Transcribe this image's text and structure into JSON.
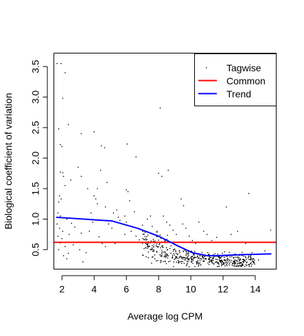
{
  "chart_data": {
    "type": "scatter",
    "title": "",
    "xlabel": "Average log CPM",
    "ylabel": "Biological coefficient of variation",
    "xlim": [
      1.5,
      15.3
    ],
    "ylim": [
      0.18,
      3.72
    ],
    "x_ticks": [
      2,
      4,
      6,
      8,
      10,
      12,
      14
    ],
    "y_ticks": [
      0.5,
      1.0,
      1.5,
      2.0,
      2.5,
      3.0,
      3.5
    ],
    "x_tick_labels": [
      "2",
      "4",
      "6",
      "8",
      "10",
      "12",
      "14"
    ],
    "y_tick_labels": [
      "0.5",
      "1.0",
      "1.5",
      "2.0",
      "2.5",
      "3.0",
      "3.5"
    ],
    "grid": false,
    "legend_position": "top-right",
    "legend": [
      {
        "label": "Tagwise",
        "symbol": "point",
        "color": "#000000"
      },
      {
        "label": "Common",
        "symbol": "line",
        "color": "#ff0000"
      },
      {
        "label": "Trend",
        "symbol": "line",
        "color": "#0000ff"
      }
    ],
    "series": [
      {
        "name": "Tagwise",
        "kind": "points",
        "color": "#000000",
        "points": [
          [
            1.7,
            3.55
          ],
          [
            1.95,
            3.55
          ],
          [
            2.2,
            3.4
          ],
          [
            2.05,
            2.98
          ],
          [
            1.8,
            2.48
          ],
          [
            1.9,
            2.22
          ],
          [
            2.0,
            2.19
          ],
          [
            1.9,
            1.77
          ],
          [
            2.05,
            1.76
          ],
          [
            2.1,
            1.7
          ],
          [
            2.55,
            1.64
          ],
          [
            2.2,
            1.55
          ],
          [
            1.85,
            1.38
          ],
          [
            1.95,
            1.33
          ],
          [
            1.8,
            1.28
          ],
          [
            1.75,
            1.1
          ],
          [
            1.9,
            1.05
          ],
          [
            2.3,
            1.0
          ],
          [
            1.7,
            0.92
          ],
          [
            1.85,
            0.85
          ],
          [
            2.05,
            0.8
          ],
          [
            1.75,
            0.72
          ],
          [
            2.0,
            0.68
          ],
          [
            1.9,
            0.61
          ],
          [
            2.2,
            0.55
          ],
          [
            1.8,
            0.5
          ],
          [
            2.4,
            0.44
          ],
          [
            2.1,
            0.4
          ],
          [
            2.3,
            0.35
          ],
          [
            2.6,
            0.93
          ],
          [
            2.8,
            0.87
          ],
          [
            2.45,
            0.75
          ],
          [
            2.9,
            0.62
          ],
          [
            2.7,
            0.58
          ],
          [
            3.1,
            0.5
          ],
          [
            3.5,
            0.45
          ],
          [
            3.3,
            0.3
          ],
          [
            2.4,
            2.55
          ],
          [
            3.0,
            1.85
          ],
          [
            3.2,
            1.7
          ],
          [
            3.6,
            1.5
          ],
          [
            4.0,
            1.38
          ],
          [
            4.2,
            1.5
          ],
          [
            4.1,
            1.33
          ],
          [
            3.8,
            1.1
          ],
          [
            3.9,
            0.95
          ],
          [
            3.7,
            0.8
          ],
          [
            3.2,
            0.77
          ],
          [
            4.3,
            0.71
          ],
          [
            4.5,
            0.6
          ],
          [
            3.2,
            2.4
          ],
          [
            4.0,
            2.43
          ],
          [
            4.45,
            2.2
          ],
          [
            4.65,
            2.17
          ],
          [
            4.4,
            1.8
          ],
          [
            4.8,
            1.6
          ],
          [
            4.2,
            1.25
          ],
          [
            4.7,
            1.2
          ],
          [
            5.2,
            1.1
          ],
          [
            5.4,
            1.15
          ],
          [
            5.5,
            1.03
          ],
          [
            4.9,
            0.92
          ],
          [
            5.1,
            0.85
          ],
          [
            5.3,
            0.6
          ],
          [
            4.7,
            0.55
          ],
          [
            5.6,
            0.98
          ],
          [
            5.9,
            1.05
          ],
          [
            6.0,
            1.48
          ],
          [
            6.1,
            1.45
          ],
          [
            6.05,
            2.23
          ],
          [
            6.6,
            2.02
          ],
          [
            6.2,
            1.3
          ],
          [
            6.5,
            1.12
          ],
          [
            6.0,
            0.95
          ],
          [
            6.3,
            0.8
          ],
          [
            5.9,
            0.75
          ],
          [
            6.6,
            0.72
          ],
          [
            6.8,
            0.66
          ],
          [
            7.2,
            0.6
          ],
          [
            7.0,
            0.9
          ],
          [
            7.3,
            1.0
          ],
          [
            7.5,
            1.05
          ],
          [
            7.6,
            0.88
          ],
          [
            7.9,
            0.8
          ],
          [
            7.7,
            0.58
          ],
          [
            8.0,
            0.55
          ],
          [
            7.5,
            0.5
          ],
          [
            8.1,
            2.82
          ],
          [
            8.0,
            1.75
          ],
          [
            8.2,
            1.7
          ],
          [
            8.6,
            1.8
          ],
          [
            8.3,
            1.05
          ],
          [
            8.5,
            0.95
          ],
          [
            8.7,
            0.9
          ],
          [
            8.9,
            0.82
          ],
          [
            9.1,
            0.75
          ],
          [
            9.4,
            1.33
          ],
          [
            9.55,
            1.22
          ],
          [
            9.5,
            0.92
          ],
          [
            9.7,
            0.85
          ],
          [
            9.9,
            0.72
          ],
          [
            10.1,
            0.65
          ],
          [
            10.3,
            0.6
          ],
          [
            10.5,
            0.95
          ],
          [
            10.8,
            0.8
          ],
          [
            11.0,
            0.75
          ],
          [
            11.3,
            0.65
          ],
          [
            11.6,
            0.7
          ],
          [
            11.8,
            0.62
          ],
          [
            12.2,
            1.2
          ],
          [
            12.5,
            0.75
          ],
          [
            12.9,
            0.8
          ],
          [
            13.4,
            0.6
          ],
          [
            13.6,
            1.42
          ],
          [
            14.95,
            0.82
          ],
          [
            14.6,
            0.48
          ],
          [
            13.8,
            0.45
          ],
          [
            14.2,
            0.33
          ],
          [
            13.9,
            0.3
          ]
        ],
        "dense_cloud": {
          "note_x_range": [
            7.0,
            14.0
          ],
          "note_y_range": [
            0.22,
            0.8
          ],
          "count": 520
        }
      },
      {
        "name": "Common",
        "kind": "hline",
        "color": "#ff0000",
        "y": 0.62
      },
      {
        "name": "Trend",
        "kind": "line",
        "color": "#0000ff",
        "x": [
          1.65,
          5.1,
          6.7,
          8.0,
          9.2,
          10.1,
          11.0,
          11.7,
          12.5,
          13.5,
          15.0
        ],
        "y": [
          1.03,
          0.97,
          0.85,
          0.72,
          0.56,
          0.45,
          0.4,
          0.4,
          0.41,
          0.42,
          0.43
        ]
      }
    ]
  }
}
